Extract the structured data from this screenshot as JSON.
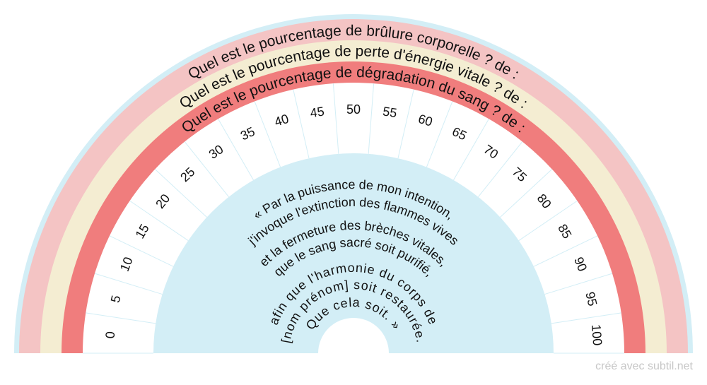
{
  "rings": [
    {
      "text": "Quel est le pourcentage de brûlure corporelle ? de :",
      "color": "#f4c4c4"
    },
    {
      "text": "Quel est le pourcentage de perte d'énergie vitale ? de :",
      "color": "#f4edd2"
    },
    {
      "text": "Quel est le pourcentage de dégradation du sang ? de :",
      "color": "#f07d7d"
    }
  ],
  "outer_band_color": "#d3eef6",
  "center_color": "#d3eef6",
  "scale": [
    "0",
    "5",
    "10",
    "15",
    "20",
    "25",
    "30",
    "35",
    "40",
    "45",
    "50",
    "55",
    "60",
    "65",
    "70",
    "75",
    "80",
    "85",
    "90",
    "95",
    "100"
  ],
  "center_lines": [
    "« Par la puissance de mon intention,",
    "j'invoque l'extinction des flammes vives",
    "et la fermeture des brèches vitales,",
    "que le sang sacré soit purifié,",
    "afin que l'harmonie du corps de",
    "[nom prénom] soit restaurée.",
    "Que cela soit. »"
  ],
  "footer": "créé avec subtil.net"
}
